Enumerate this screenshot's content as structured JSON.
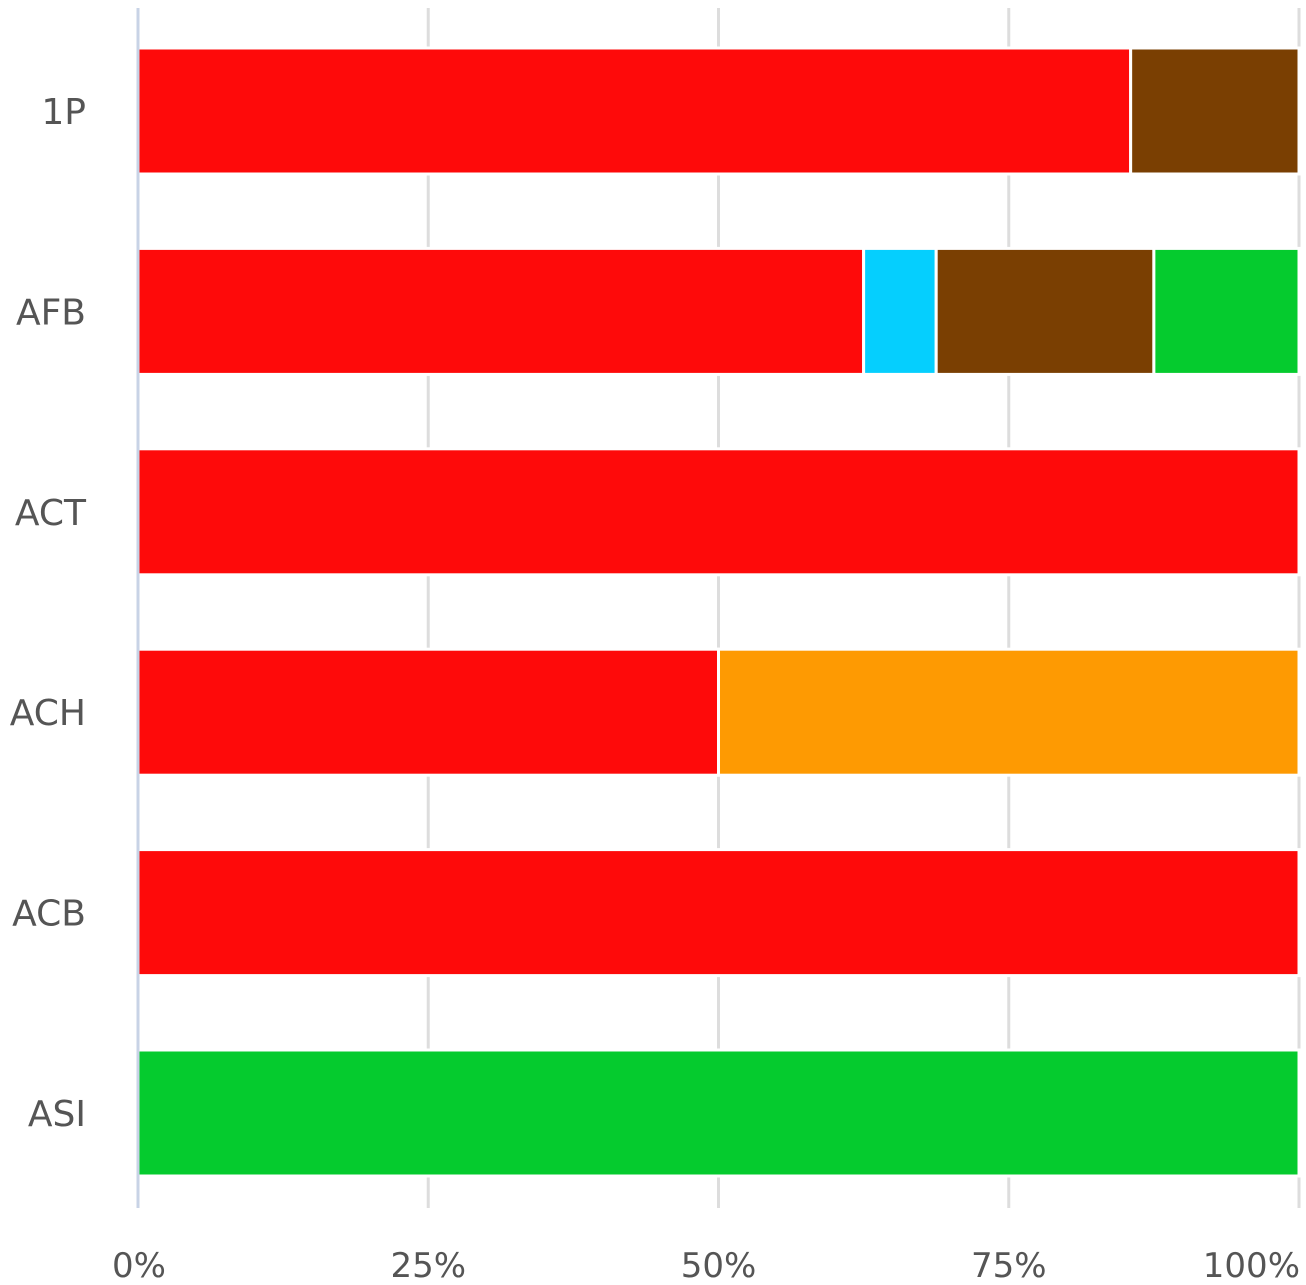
{
  "chart_data": {
    "type": "bar",
    "orientation": "horizontal",
    "stacking": "percent",
    "categories": [
      "1P",
      "AFB",
      "ACT",
      "ACH",
      "ACB",
      "ASI"
    ],
    "x_ticks": [
      "0%",
      "25%",
      "50%",
      "75%",
      "100%"
    ],
    "xlim": [
      0,
      100
    ],
    "grid": true,
    "legend": "none",
    "segments": [
      [
        {
          "value": 85.5,
          "color": "#fe0a0a"
        },
        {
          "value": 14.5,
          "color": "#7a3f02"
        }
      ],
      [
        {
          "value": 62.5,
          "color": "#fe0a0a"
        },
        {
          "value": 6.25,
          "color": "#05cffe"
        },
        {
          "value": 18.75,
          "color": "#7a3f02"
        },
        {
          "value": 12.5,
          "color": "#05cb2e"
        }
      ],
      [
        {
          "value": 100,
          "color": "#fe0a0a"
        }
      ],
      [
        {
          "value": 50,
          "color": "#fe0a0a"
        },
        {
          "value": 50,
          "color": "#fe9a02"
        }
      ],
      [
        {
          "value": 100,
          "color": "#fe0a0a"
        }
      ],
      [
        {
          "value": 100,
          "color": "#05cb2e"
        }
      ]
    ]
  }
}
